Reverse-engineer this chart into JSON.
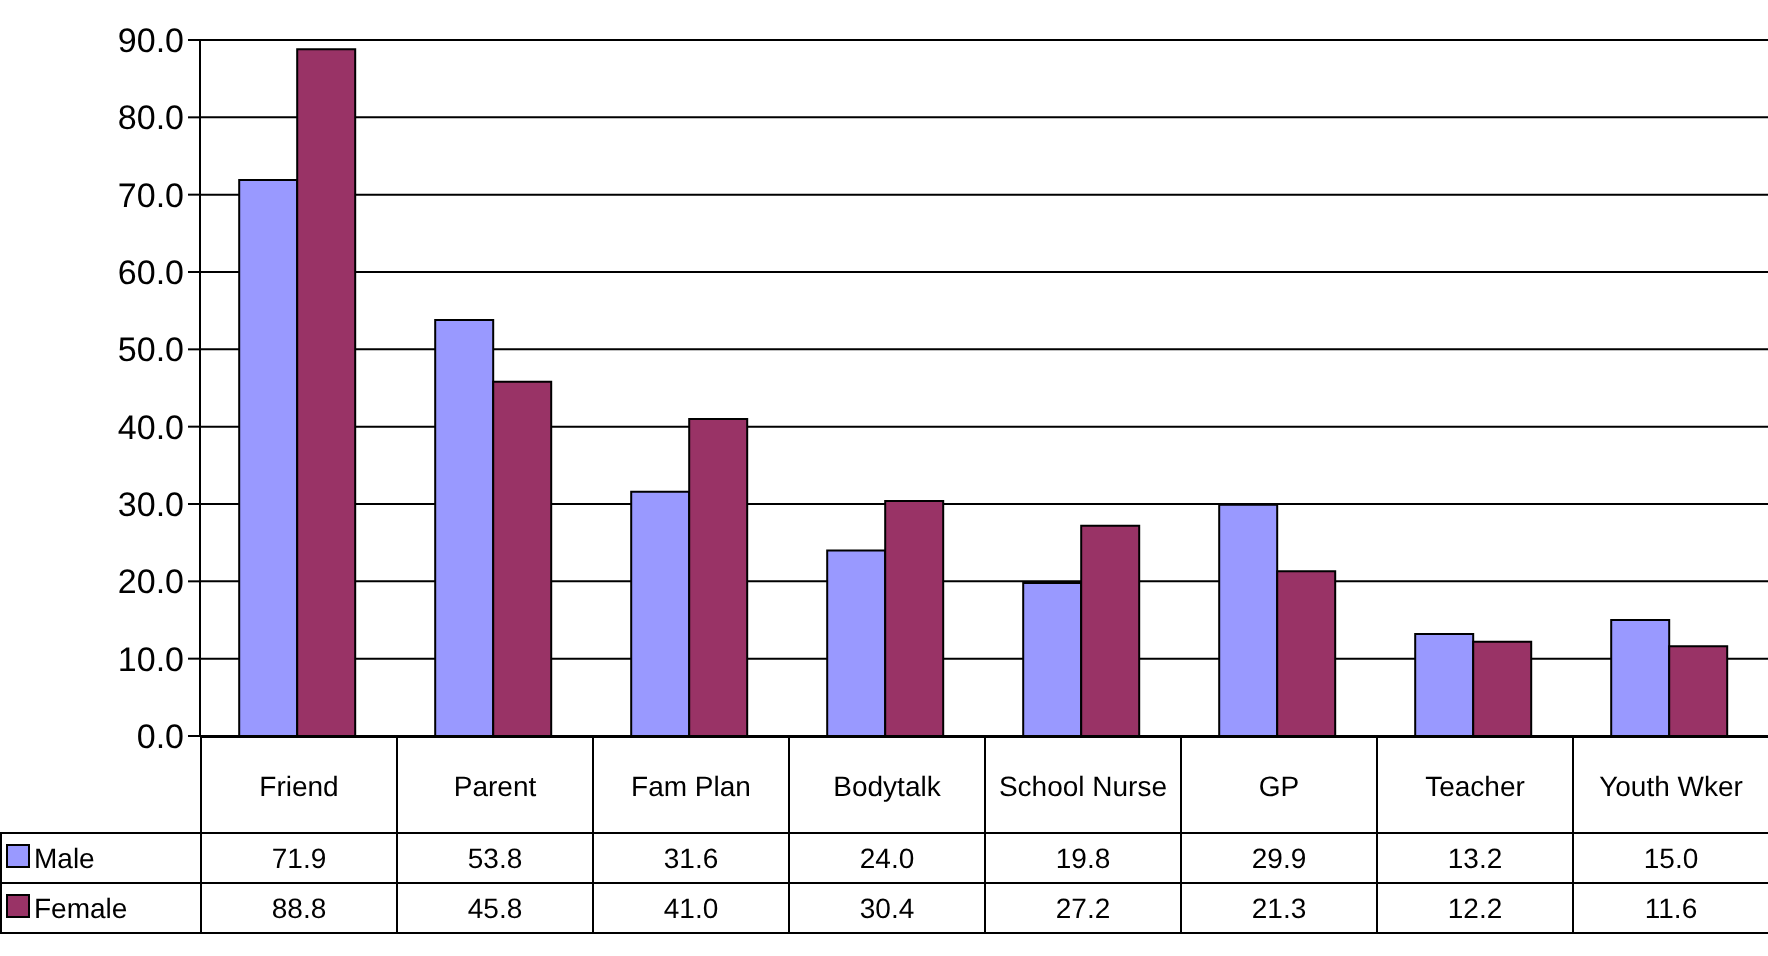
{
  "chart_data": {
    "type": "bar",
    "categories": [
      "Friend",
      "Parent",
      "Fam Plan",
      "Bodytalk",
      "School Nurse",
      "GP",
      "Teacher",
      "Youth Wker"
    ],
    "series": [
      {
        "name": "Male",
        "color": "#9999ff",
        "values": [
          71.9,
          53.8,
          31.6,
          24.0,
          19.8,
          29.9,
          13.2,
          15.0
        ],
        "value_labels": [
          "71.9",
          "53.8",
          "31.6",
          "24.0",
          "19.8",
          "29.9",
          "13.2",
          "15.0"
        ]
      },
      {
        "name": "Female",
        "color": "#993366",
        "values": [
          88.8,
          45.8,
          41.0,
          30.4,
          27.2,
          21.3,
          12.2,
          11.6
        ],
        "value_labels": [
          "88.8",
          "45.8",
          "41.0",
          "30.4",
          "27.2",
          "21.3",
          "12.2",
          "11.6"
        ]
      }
    ],
    "ylim": [
      0,
      90
    ],
    "yticks": [
      {
        "value": 0,
        "label": "0.0"
      },
      {
        "value": 10,
        "label": "10.0"
      },
      {
        "value": 20,
        "label": "20.0"
      },
      {
        "value": 30,
        "label": "30.0"
      },
      {
        "value": 40,
        "label": "40.0"
      },
      {
        "value": 50,
        "label": "50.0"
      },
      {
        "value": 60,
        "label": "60.0"
      },
      {
        "value": 70,
        "label": "70.0"
      },
      {
        "value": 80,
        "label": "80.0"
      },
      {
        "value": 90,
        "label": "90.0"
      }
    ],
    "grid": "y",
    "legend": "bottom"
  }
}
